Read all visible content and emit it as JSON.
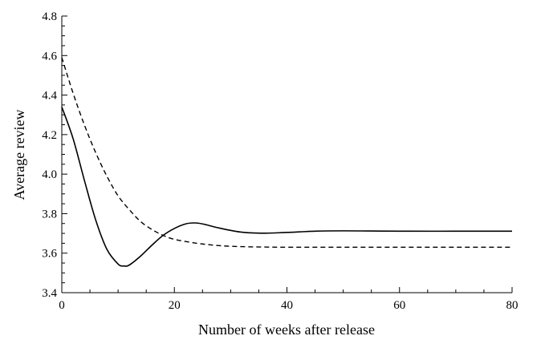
{
  "chart_data": {
    "type": "line",
    "xlabel": "Number of weeks after release",
    "ylabel": "Average review",
    "xlim": [
      0,
      80
    ],
    "ylim": [
      3.4,
      4.8
    ],
    "xticks": [
      0,
      20,
      40,
      60,
      80
    ],
    "xtick_labels": [
      "0",
      "20",
      "40",
      "60",
      "80"
    ],
    "yticks": [
      3.4,
      3.6,
      3.8,
      4.0,
      4.2,
      4.4,
      4.6,
      4.8
    ],
    "ytick_labels": [
      "3.4",
      "3.6",
      "3.8",
      "4.0",
      "4.2",
      "4.4",
      "4.6",
      "4.8"
    ],
    "grid": false,
    "series": [
      {
        "style": "solid",
        "x": [
          0,
          2,
          4,
          6,
          8,
          10,
          11,
          12,
          14,
          16,
          18,
          20,
          22,
          23.5,
          25,
          28,
          32,
          36,
          40,
          45,
          50,
          55,
          60,
          70,
          80
        ],
        "y": [
          4.34,
          4.18,
          3.97,
          3.77,
          3.62,
          3.545,
          3.535,
          3.54,
          3.585,
          3.64,
          3.69,
          3.725,
          3.748,
          3.753,
          3.748,
          3.727,
          3.706,
          3.701,
          3.705,
          3.711,
          3.713,
          3.712,
          3.711,
          3.711,
          3.711
        ]
      },
      {
        "style": "dashed",
        "x": [
          0,
          2,
          4,
          6,
          8,
          10,
          12,
          14,
          16,
          18,
          20,
          24,
          28,
          32,
          36,
          40,
          50,
          60,
          70,
          80
        ],
        "y": [
          4.59,
          4.41,
          4.25,
          4.11,
          3.99,
          3.89,
          3.82,
          3.76,
          3.72,
          3.69,
          3.67,
          3.65,
          3.638,
          3.633,
          3.631,
          3.63,
          3.63,
          3.63,
          3.63,
          3.63
        ]
      }
    ]
  }
}
